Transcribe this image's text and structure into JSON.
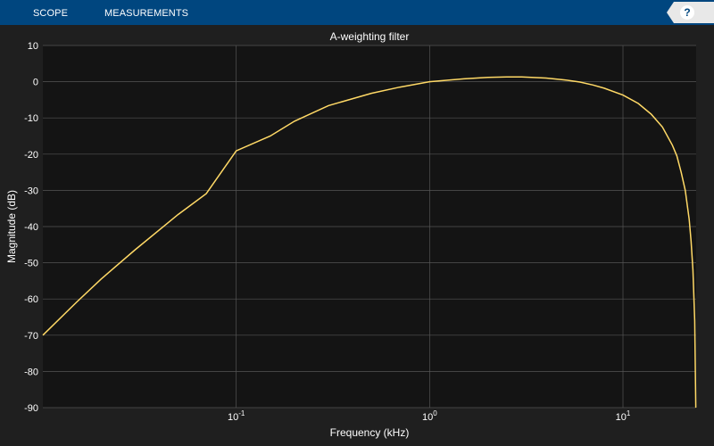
{
  "toolbar": {
    "tabs": [
      {
        "label": "SCOPE"
      },
      {
        "label": "MEASUREMENTS"
      }
    ],
    "help_label": "?",
    "help_icon": "question-mark-icon",
    "background_color": "#00467f"
  },
  "chart_data": {
    "type": "line",
    "title": "A-weighting filter",
    "xlabel": "Frequency (kHz)",
    "ylabel": "Magnitude (dB)",
    "xscale": "log",
    "xlim": [
      0.01,
      23.9
    ],
    "ylim": [
      -90,
      10
    ],
    "yticks": [
      10,
      0,
      -10,
      -20,
      -30,
      -40,
      -50,
      -60,
      -70,
      -80,
      -90
    ],
    "ytick_labels": [
      "10",
      "0",
      "-10",
      "-20",
      "-30",
      "-40",
      "-50",
      "-60",
      "-70",
      "-80",
      "-90"
    ],
    "xticks": [
      0.1,
      1,
      10
    ],
    "xtick_labels": [
      {
        "base": "10",
        "exp": "-1"
      },
      {
        "base": "10",
        "exp": "0"
      },
      {
        "base": "10",
        "exp": "1"
      }
    ],
    "grid": true,
    "colors": {
      "plot_background": "#141414",
      "figure_background": "#1f1f1f",
      "grid": "#555555",
      "line": "#ffd966"
    },
    "series": [
      {
        "x": [
          0.01,
          0.015,
          0.02,
          0.03,
          0.05,
          0.07,
          0.1,
          0.15,
          0.2,
          0.3,
          0.5,
          0.7,
          1,
          1.5,
          2,
          2.5,
          3,
          4,
          5,
          6,
          7,
          8,
          10,
          12,
          14,
          16,
          18,
          19,
          20,
          21,
          22,
          22.5,
          23,
          23.5,
          23.8
        ],
        "y": [
          -70,
          -60.8,
          -54.5,
          -46.4,
          -36.7,
          -30.9,
          -19.1,
          -15,
          -10.9,
          -6.6,
          -3.2,
          -1.5,
          0,
          0.8,
          1.2,
          1.3,
          1.3,
          1,
          0.5,
          -0.1,
          -0.9,
          -1.8,
          -3.7,
          -6,
          -9,
          -12.5,
          -17.5,
          -20.5,
          -25,
          -30,
          -38,
          -44,
          -52,
          -66,
          -90
        ]
      }
    ]
  }
}
